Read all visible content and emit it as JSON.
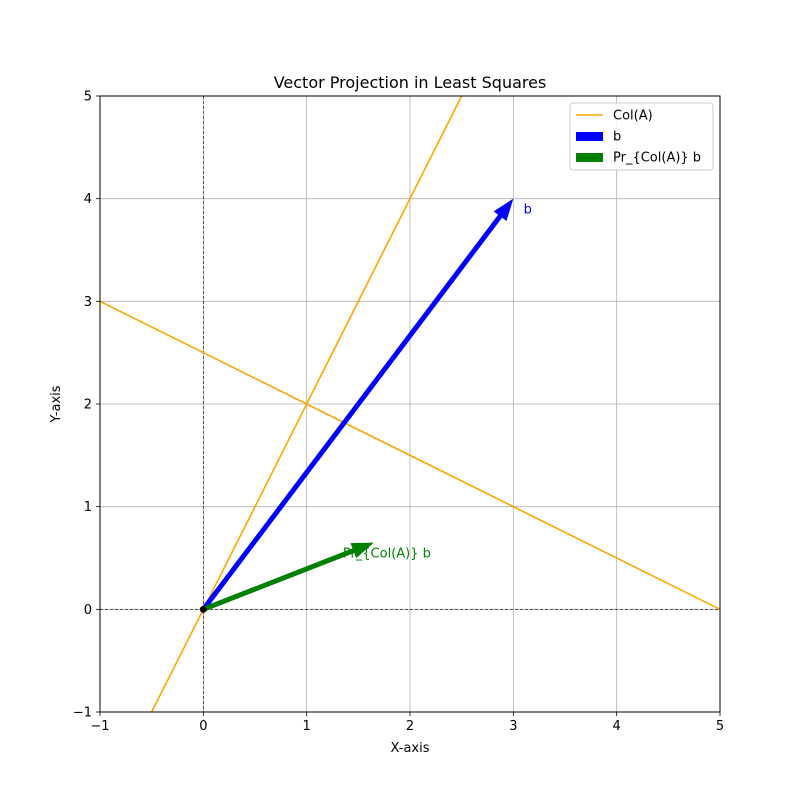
{
  "chart_data": {
    "type": "line",
    "title": "Vector Projection in Least Squares",
    "xlabel": "X-axis",
    "ylabel": "Y-axis",
    "xlim": [
      -1,
      5
    ],
    "ylim": [
      -1,
      5
    ],
    "grid": true,
    "legend_placement": "top-right",
    "xticks": [
      "−1",
      "0",
      "1",
      "2",
      "3",
      "4",
      "5"
    ],
    "yticks": [
      "−1",
      "0",
      "1",
      "2",
      "3",
      "4",
      "5"
    ],
    "xtick_values": [
      -1,
      0,
      1,
      2,
      3,
      4,
      5
    ],
    "ytick_values": [
      -1,
      0,
      1,
      2,
      3,
      4,
      5
    ],
    "lines": [
      {
        "name": "Col(A)",
        "color": "#ffa500",
        "points": [
          [
            -0.5,
            -1
          ],
          [
            2.5,
            5
          ]
        ]
      },
      {
        "color": "#ffa500",
        "points": [
          [
            -1,
            3
          ],
          [
            5,
            0
          ]
        ]
      }
    ],
    "vectors": [
      {
        "name": "b",
        "color": "#0000ff",
        "origin": [
          0,
          0
        ],
        "tip": [
          3,
          4
        ],
        "label": "b",
        "label_at": [
          3.1,
          3.9
        ]
      },
      {
        "name": "Pr_{Col(A)} b",
        "color": "#008000",
        "origin": [
          0,
          0
        ],
        "tip": [
          1.65,
          0.65
        ],
        "label": "Pr_{Col(A)} b",
        "label_at": [
          1.35,
          0.55
        ]
      }
    ],
    "origin_point": [
      0,
      0
    ],
    "legend": [
      {
        "label": "Col(A)",
        "kind": "line",
        "color": "#ffa500"
      },
      {
        "label": "b",
        "kind": "patch",
        "color": "#0000ff"
      },
      {
        "label": "Pr_{Col(A)} b",
        "kind": "patch",
        "color": "#008000"
      }
    ]
  }
}
